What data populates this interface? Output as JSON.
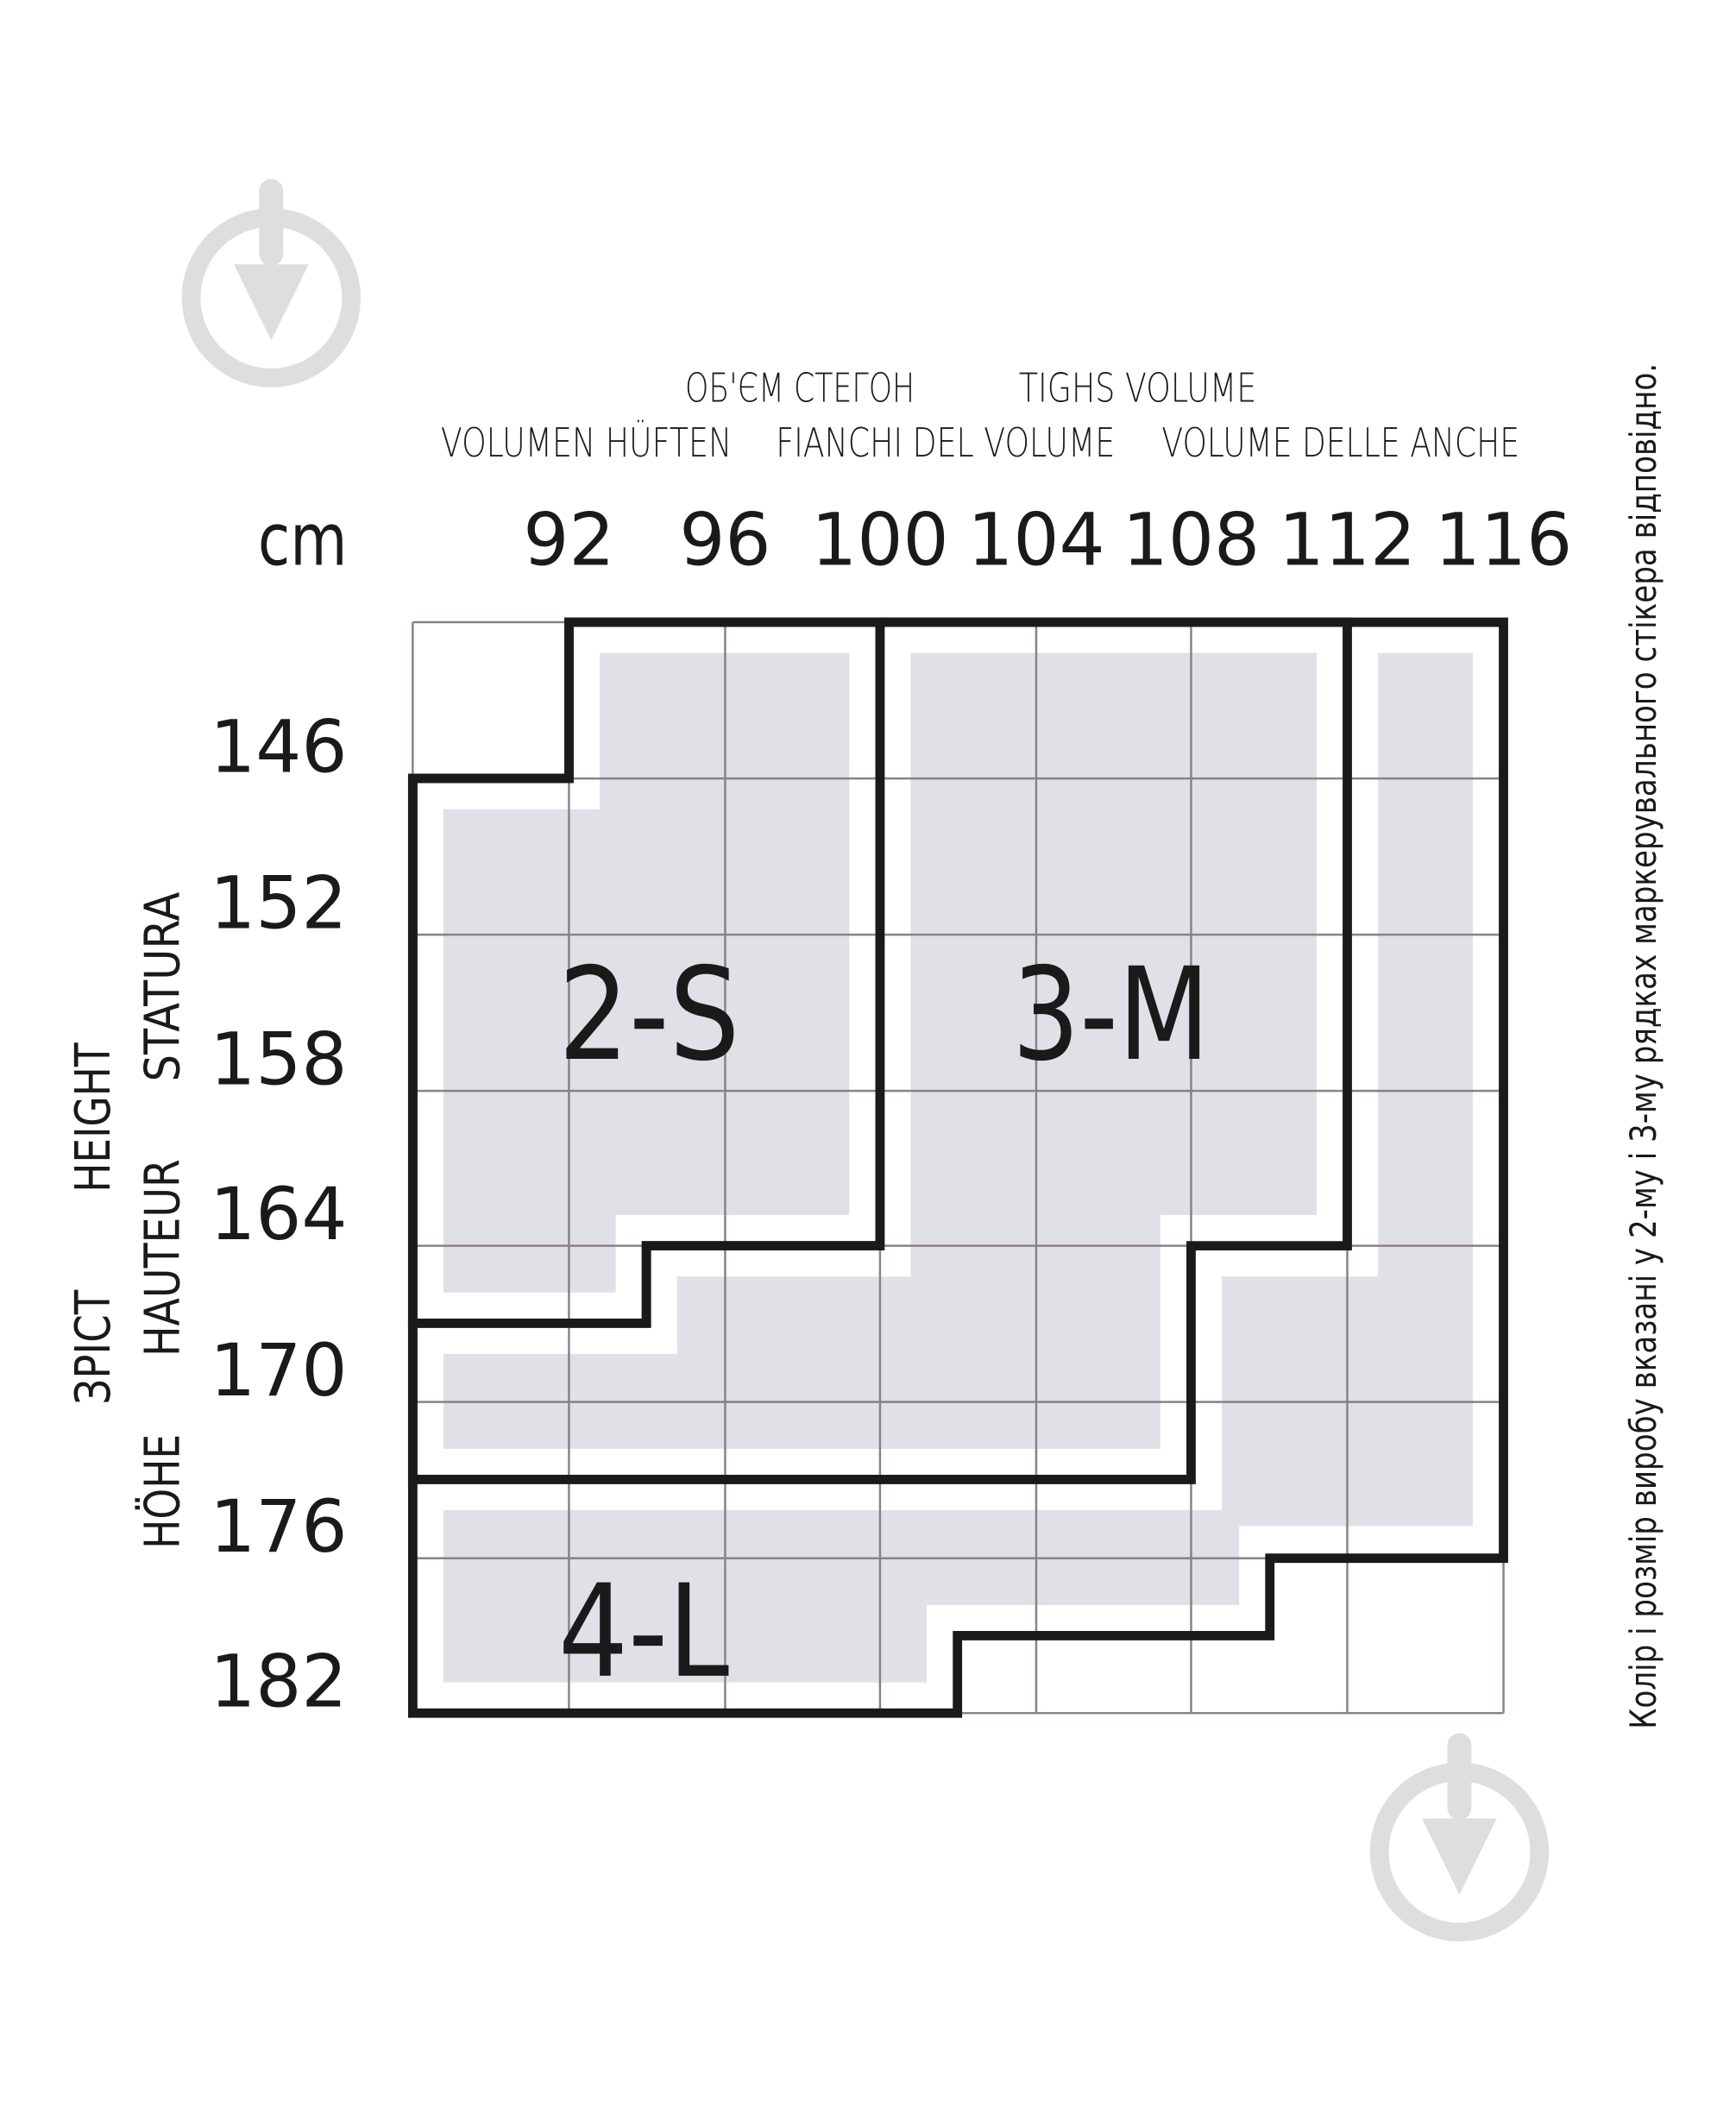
{
  "header": {
    "line1": [
      "ОБ'ЄМ СТЕГОН",
      "TIGHS VOLUME"
    ],
    "line2": [
      "VOLUMEN HÜFTEN",
      "FIANCHI DEL VOLUME",
      "VOLUME DELLE ANCHE"
    ]
  },
  "unit": "cm",
  "hip_ticks": [
    "92",
    "96",
    "100",
    "104",
    "108",
    "112",
    "116"
  ],
  "height_ticks": [
    "146",
    "152",
    "158",
    "164",
    "170",
    "176",
    "182"
  ],
  "height_labels": {
    "col1": [
      "ЗРІСТ",
      "HEIGHT"
    ],
    "col2": [
      "HÖHE",
      "HAUTEUR",
      "STATURA"
    ]
  },
  "sizes": [
    {
      "label": "2-S"
    },
    {
      "label": "3-M"
    },
    {
      "label": "4-L"
    }
  ],
  "note": "Колір і розмір виробу вказані у 2-му і 3-му рядках маркерувального стікера відповідно.",
  "colors": {
    "fill": "#dfe1e6",
    "outline": "#1a1a1a",
    "grid": "#8c8088",
    "watermark": "#dedede"
  },
  "icons": [
    "watermark-pin-icon",
    "watermark-pin-icon"
  ]
}
